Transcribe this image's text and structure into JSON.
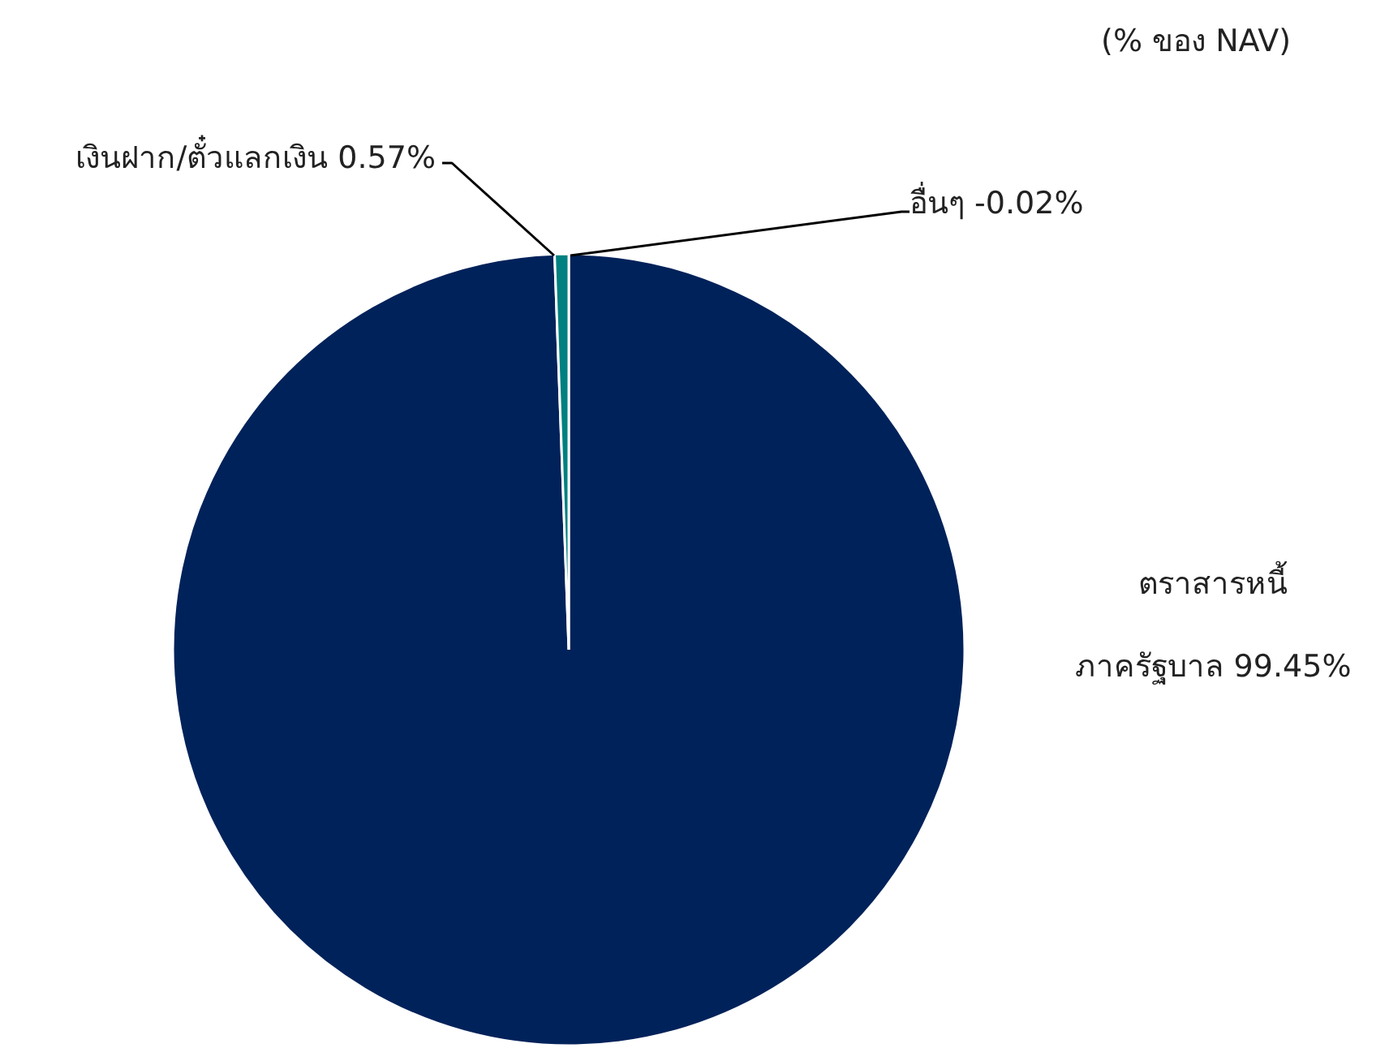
{
  "chart_data": {
    "type": "pie",
    "categories": [
      "ตราสารหนี้\nภาครัฐบาล",
      "เงินฝาก/ตั๋วแลกเงิน",
      "อื่นๆ"
    ],
    "values": [
      99.45,
      0.57,
      null
    ],
    "value_labels": [
      "99.45%",
      "0.57%",
      "-0.02%"
    ],
    "colors": [
      "#00225a",
      "#008080",
      "#ffffff"
    ],
    "annotations": [
      "(% ของ NAV)"
    ]
  }
}
